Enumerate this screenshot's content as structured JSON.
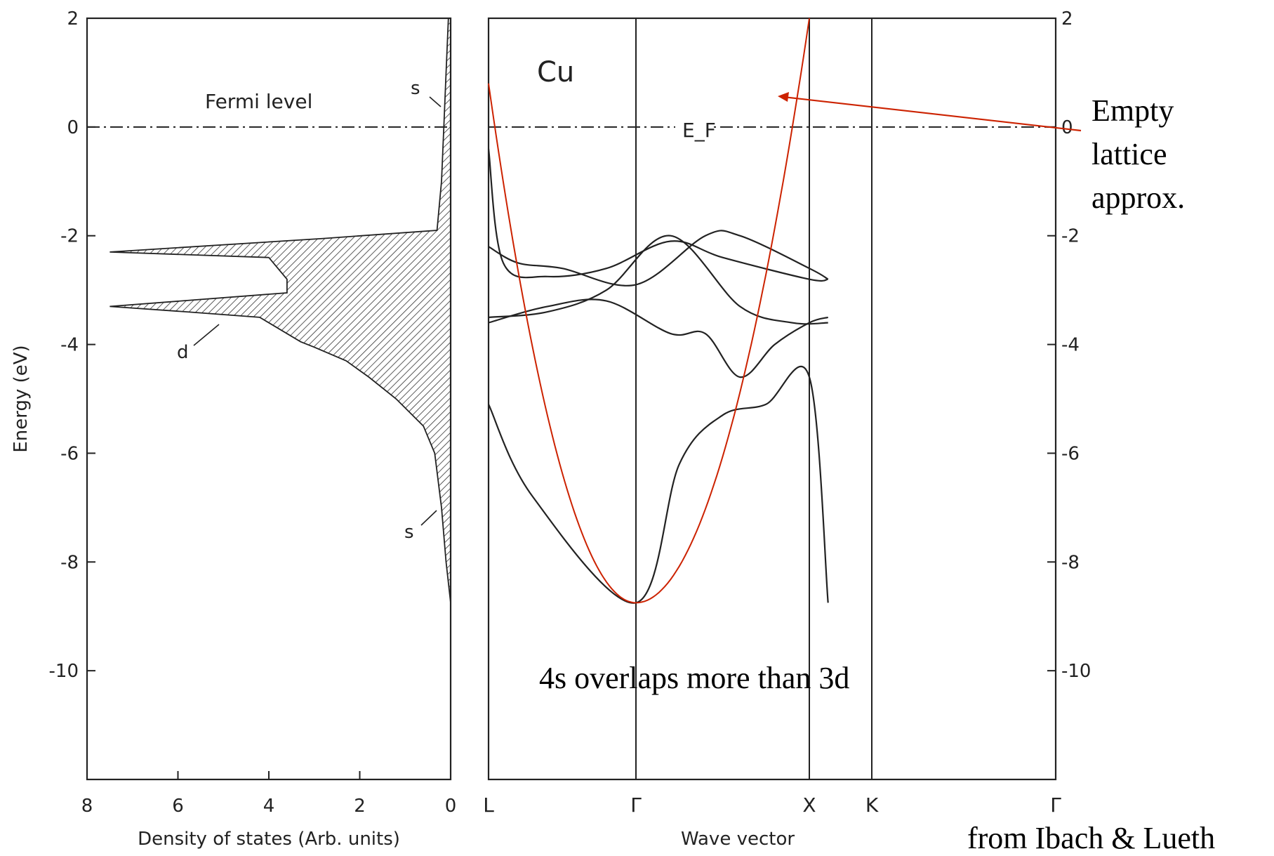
{
  "chart_data": [
    {
      "type": "area",
      "xlabel": "Density of states (Arb. units)",
      "ylabel": "Energy (eV)",
      "xlim": [
        8,
        0
      ],
      "ylim": [
        -12,
        2
      ],
      "x_ticks": [
        "8",
        "6",
        "4",
        "2",
        "0"
      ],
      "y_ticks": [
        "2",
        "0",
        "-2",
        "-4",
        "-6",
        "-8",
        "-10"
      ],
      "annotations": [
        "Fermi level",
        "s",
        "d",
        "s"
      ],
      "fermi_level": 0,
      "dos_points": [
        {
          "e": 2.0,
          "dos": 0.05
        },
        {
          "e": 1.0,
          "dos": 0.1
        },
        {
          "e": 0.0,
          "dos": 0.15
        },
        {
          "e": -1.0,
          "dos": 0.2
        },
        {
          "e": -1.9,
          "dos": 0.3
        },
        {
          "e": -2.05,
          "dos": 2.8
        },
        {
          "e": -2.3,
          "dos": 7.5
        },
        {
          "e": -2.4,
          "dos": 4.0
        },
        {
          "e": -2.8,
          "dos": 3.6
        },
        {
          "e": -3.05,
          "dos": 3.6
        },
        {
          "e": -3.3,
          "dos": 7.5
        },
        {
          "e": -3.4,
          "dos": 5.8
        },
        {
          "e": -3.5,
          "dos": 4.2
        },
        {
          "e": -3.95,
          "dos": 3.3
        },
        {
          "e": -4.05,
          "dos": 3.0
        },
        {
          "e": -4.3,
          "dos": 2.3
        },
        {
          "e": -4.6,
          "dos": 1.8
        },
        {
          "e": -5.0,
          "dos": 1.2
        },
        {
          "e": -5.5,
          "dos": 0.6
        },
        {
          "e": -6.0,
          "dos": 0.35
        },
        {
          "e": -7.0,
          "dos": 0.2
        },
        {
          "e": -8.0,
          "dos": 0.1
        },
        {
          "e": -8.75,
          "dos": 0.0
        }
      ]
    },
    {
      "type": "line",
      "title": "Cu",
      "xlabel": "Wave vector",
      "ylabel": "",
      "ylim": [
        -12,
        2
      ],
      "k_points": [
        "L",
        "Γ",
        "X",
        "K",
        "Γ"
      ],
      "y_ticks": [
        "2",
        "0",
        "-2",
        "-4",
        "-6",
        "-8",
        "-10"
      ],
      "fermi_label": "E_F",
      "bands": [
        {
          "points": [
            [
              0.0,
              -0.4
            ],
            [
              0.1,
              -2.5
            ],
            [
              0.4,
              -2.75
            ],
            [
              0.8,
              -2.6
            ],
            [
              1.2,
              -2.1
            ],
            [
              1.5,
              -2.4
            ],
            [
              2.0,
              -2.8
            ],
            [
              2.3,
              -2.8
            ]
          ]
        },
        {
          "points": [
            [
              0.0,
              -2.2
            ],
            [
              0.2,
              -2.5
            ],
            [
              0.5,
              -2.6
            ],
            [
              1.0,
              -2.9
            ],
            [
              1.4,
              -2.0
            ],
            [
              1.6,
              -2.0
            ],
            [
              2.0,
              -2.6
            ],
            [
              2.3,
              -2.8
            ]
          ]
        },
        {
          "points": [
            [
              0.0,
              -3.5
            ],
            [
              0.4,
              -3.4
            ],
            [
              0.8,
              -3.0
            ],
            [
              1.2,
              -2.0
            ],
            [
              1.6,
              -3.3
            ],
            [
              1.9,
              -3.6
            ],
            [
              2.3,
              -3.6
            ]
          ]
        },
        {
          "points": [
            [
              0.0,
              -3.6
            ],
            [
              0.4,
              -3.3
            ],
            [
              0.8,
              -3.2
            ],
            [
              1.2,
              -3.8
            ],
            [
              1.4,
              -3.8
            ],
            [
              1.6,
              -4.6
            ],
            [
              1.8,
              -4.0
            ],
            [
              2.0,
              -3.6
            ],
            [
              2.3,
              -3.5
            ]
          ]
        },
        {
          "points": [
            [
              0.0,
              -5.1
            ],
            [
              0.3,
              -6.8
            ],
            [
              1.0,
              -8.75
            ],
            [
              1.25,
              -6.2
            ],
            [
              1.5,
              -5.3
            ],
            [
              1.75,
              -5.1
            ],
            [
              2.0,
              -4.6
            ],
            [
              2.3,
              -8.75
            ]
          ]
        }
      ],
      "empty_lattice": {
        "points": [
          [
            0.0,
            0.8
          ],
          [
            1.0,
            -8.75
          ],
          [
            2.0,
            2.0
          ]
        ]
      },
      "annotations": [
        "Empty lattice approx.",
        "4s overlaps more than 3d",
        "from Ibach & Lueth"
      ]
    }
  ]
}
